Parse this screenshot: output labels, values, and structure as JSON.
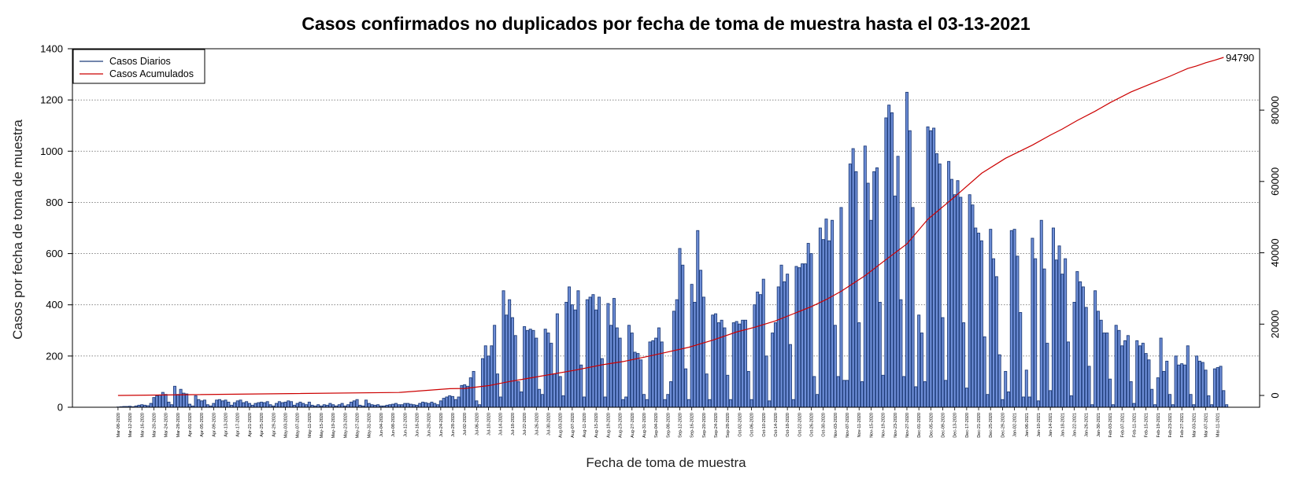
{
  "chart_data": {
    "type": "bar",
    "title": "Casos confirmados no duplicados por fecha de toma de muestra hasta el 03-13-2021",
    "xlabel": "Fecha de toma de muestra",
    "ylabel": "Casos por fecha de toma de muestra",
    "start_date": "2020-03-08",
    "end_date": "2021-03-13",
    "ylim": [
      0,
      1400
    ],
    "yticks": [
      0,
      200,
      400,
      600,
      800,
      1000,
      1200,
      1400
    ],
    "y2lim": [
      0,
      94790
    ],
    "y2ticks": [
      0,
      20000,
      40000,
      60000,
      80000
    ],
    "grid": "horizontal dotted",
    "legend": "top-left",
    "date_tick_labels": [
      "Mar-08-2020",
      "Mar-12-2020",
      "Mar-16-2020",
      "Mar-20-2020",
      "Mar-24-2020",
      "Mar-28-2020",
      "Apr-01-2020",
      "Apr-05-2020",
      "Apr-09-2020",
      "Apr-13-2020",
      "Apr-17-2020",
      "Apr-21-2020",
      "Apr-25-2020",
      "Apr-29-2020",
      "May-03-2020",
      "May-07-2020",
      "May-11-2020",
      "May-15-2020",
      "May-19-2020",
      "May-23-2020",
      "May-27-2020",
      "May-31-2020",
      "Jun-04-2020",
      "Jun-08-2020",
      "Jun-12-2020",
      "Jun-16-2020",
      "Jun-20-2020",
      "Jun-24-2020",
      "Jun-28-2020",
      "Jul-02-2020",
      "Jul-06-2020",
      "Jul-10-2020",
      "Jul-14-2020",
      "Jul-18-2020",
      "Jul-22-2020",
      "Jul-26-2020",
      "Jul-30-2020",
      "Aug-03-2020",
      "Aug-07-2020",
      "Aug-11-2020",
      "Aug-15-2020",
      "Aug-19-2020",
      "Aug-23-2020",
      "Aug-27-2020",
      "Aug-31-2020",
      "Sep-04-2020",
      "Sep-08-2020",
      "Sep-12-2020",
      "Sep-16-2020",
      "Sep-20-2020",
      "Sep-24-2020",
      "Sep-28-2020",
      "Oct-02-2020",
      "Oct-06-2020",
      "Oct-10-2020",
      "Oct-14-2020",
      "Oct-18-2020",
      "Oct-22-2020",
      "Oct-26-2020",
      "Oct-30-2020",
      "Nov-03-2020",
      "Nov-07-2020",
      "Nov-11-2020",
      "Nov-15-2020",
      "Nov-19-2020",
      "Nov-23-2020",
      "Nov-27-2020",
      "Dec-01-2020",
      "Dec-05-2020",
      "Dec-09-2020",
      "Dec-13-2020",
      "Dec-17-2020",
      "Dec-21-2020",
      "Dec-25-2020",
      "Dec-29-2020",
      "Jan-02-2021",
      "Jan-06-2021",
      "Jan-10-2021",
      "Jan-14-2021",
      "Jan-18-2021",
      "Jan-22-2021",
      "Jan-26-2021",
      "Jan-30-2021",
      "Feb-03-2021",
      "Feb-07-2021",
      "Feb-11-2021",
      "Feb-15-2021",
      "Feb-19-2021",
      "Feb-23-2021",
      "Feb-27-2021",
      "Mar-03-2021",
      "Mar-07-2021",
      "Mar-11-2021"
    ],
    "series": [
      {
        "name": "Casos Diarios",
        "type": "bar",
        "color": "#1F3D7A",
        "fill": "#6F8FD8",
        "values": [
          1,
          2,
          3,
          3,
          4,
          2,
          5,
          8,
          10,
          8,
          6,
          15,
          38,
          45,
          48,
          58,
          50,
          20,
          10,
          82,
          50,
          70,
          55,
          52,
          12,
          5,
          45,
          30,
          25,
          28,
          10,
          5,
          15,
          28,
          30,
          25,
          28,
          20,
          8,
          18,
          25,
          28,
          18,
          22,
          15,
          8,
          15,
          18,
          20,
          18,
          22,
          10,
          5,
          15,
          22,
          18,
          20,
          25,
          22,
          8,
          15,
          20,
          15,
          10,
          20,
          8,
          5,
          10,
          5,
          10,
          8,
          15,
          10,
          5,
          10,
          15,
          5,
          10,
          20,
          25,
          30,
          8,
          5,
          28,
          15,
          10,
          8,
          10,
          5,
          5,
          8,
          10,
          12,
          15,
          10,
          10,
          15,
          15,
          12,
          10,
          8,
          15,
          20,
          18,
          15,
          20,
          15,
          10,
          25,
          35,
          40,
          45,
          42,
          30,
          40,
          85,
          88,
          82,
          115,
          140,
          25,
          10,
          190,
          240,
          200,
          240,
          320,
          130,
          40,
          455,
          360,
          420,
          350,
          280,
          100,
          60,
          315,
          300,
          305,
          300,
          270,
          70,
          50,
          305,
          290,
          250,
          130,
          365,
          120,
          45,
          410,
          470,
          400,
          380,
          455,
          165,
          40,
          420,
          430,
          440,
          380,
          430,
          190,
          40,
          405,
          320,
          425,
          310,
          270,
          30,
          40,
          320,
          290,
          215,
          210,
          185,
          50,
          30,
          255,
          260,
          270,
          310,
          255,
          30,
          50,
          100,
          375,
          420,
          620,
          555,
          150,
          30,
          480,
          410,
          690,
          535,
          430,
          130,
          30,
          360,
          365,
          330,
          340,
          310,
          125,
          30,
          330,
          335,
          325,
          340,
          340,
          140,
          30,
          400,
          450,
          440,
          500,
          200,
          25,
          290,
          330,
          470,
          555,
          490,
          520,
          245,
          30,
          550,
          545,
          560,
          560,
          640,
          600,
          120,
          50,
          700,
          655,
          735,
          650,
          730,
          320,
          120,
          780,
          105,
          105,
          950,
          1010,
          920,
          330,
          100,
          1020,
          875,
          730,
          920,
          935,
          410,
          125,
          1130,
          1180,
          1150,
          825,
          980,
          420,
          120,
          1230,
          1080,
          780,
          80,
          360,
          290,
          100,
          1095,
          1080,
          1090,
          990,
          950,
          350,
          105,
          960,
          890,
          830,
          885,
          820,
          330,
          75,
          830,
          790,
          700,
          680,
          650,
          275,
          50,
          695,
          580,
          510,
          205,
          30,
          140,
          60,
          690,
          695,
          590,
          370,
          40,
          145,
          40,
          660,
          580,
          25,
          730,
          540,
          250,
          65,
          700,
          575,
          630,
          520,
          580,
          255,
          45,
          410,
          530,
          490,
          470,
          390,
          160,
          10,
          455,
          375,
          340,
          290,
          290,
          110,
          10,
          320,
          300,
          240,
          260,
          280,
          100,
          15,
          260,
          240,
          250,
          210,
          185,
          70,
          10,
          115,
          270,
          140,
          180,
          50,
          10,
          200,
          165,
          170,
          165,
          240,
          50,
          10,
          200,
          180,
          175,
          145,
          45,
          10,
          150,
          155,
          160,
          65,
          10
        ]
      },
      {
        "name": "Casos Acumulados",
        "type": "line",
        "color": "#CC0000",
        "values": [
          0,
          840,
          1900,
          1950,
          2750,
          3900,
          4900,
          7100,
          8600,
          9500,
          10900,
          12200,
          13500,
          15500,
          17800,
          19100,
          20900,
          22900,
          24900,
          26900,
          29200,
          33600,
          38100,
          42500,
          49400,
          55700,
          62300,
          66500,
          70200,
          73000,
          74700,
          77100,
          79700,
          82100,
          85100,
          87500,
          89500,
          90600,
          91700,
          92400,
          93300,
          94000,
          94790
        ],
        "dates": [
          "Mar-08-2020",
          "Jun-10-2020",
          "Jun-27-2020",
          "Jul-02-2020",
          "Jul-10-2020",
          "Jul-17-2020",
          "Jul-24-2020",
          "Aug-08-2020",
          "Aug-17-2020",
          "Aug-24-2020",
          "Sep-01-2020",
          "Sep-08-2020",
          "Sep-15-2020",
          "Sep-23-2020",
          "Oct-01-2020",
          "Oct-07-2020",
          "Oct-14-2020",
          "Oct-20-2020",
          "Oct-26-2020",
          "Oct-31-2020",
          "Nov-05-2020",
          "Nov-13-2020",
          "Nov-20-2020",
          "Nov-27-2020",
          "Dec-04-2020",
          "Dec-13-2020",
          "Dec-22-2020",
          "Dec-30-2020",
          "Jan-08-2021",
          "Jan-14-2021",
          "Jan-18-2021",
          "Jan-23-2021",
          "Jan-29-2021",
          "Feb-03-2021",
          "Feb-10-2021",
          "Feb-17-2021",
          "Feb-23-2021",
          "Feb-26-2021",
          "Mar-01-2021",
          "Mar-04-2021",
          "Mar-07-2021",
          "Mar-10-2021",
          "Mar-13-2021"
        ],
        "end_label": "94790"
      }
    ]
  }
}
